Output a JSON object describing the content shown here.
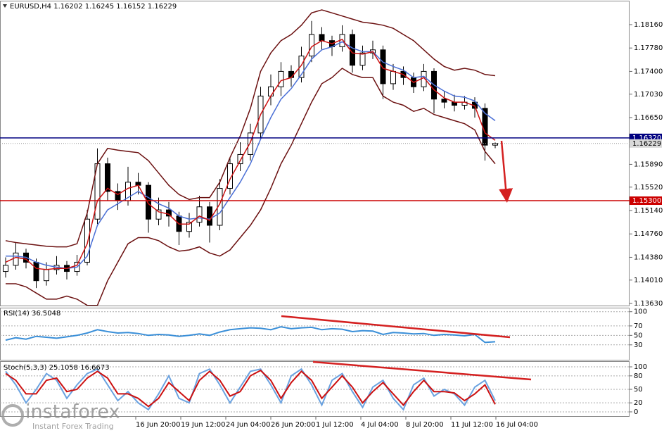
{
  "chart_data": [
    {
      "type": "candlestick",
      "symbol": "EURUSD,H4",
      "candles": [
        [
          1.1415,
          1.1438,
          1.1405,
          1.1425
        ],
        [
          1.1425,
          1.1462,
          1.1418,
          1.1445
        ],
        [
          1.1445,
          1.1452,
          1.142,
          1.143
        ],
        [
          1.143,
          1.1436,
          1.1388,
          1.14
        ],
        [
          1.14,
          1.143,
          1.1392,
          1.1418
        ],
        [
          1.1418,
          1.144,
          1.141,
          1.1425
        ],
        [
          1.1425,
          1.1432,
          1.1402,
          1.1415
        ],
        [
          1.1415,
          1.1442,
          1.1408,
          1.143
        ],
        [
          1.143,
          1.1515,
          1.1425,
          1.15
        ],
        [
          1.15,
          1.1615,
          1.1492,
          1.159
        ],
        [
          1.159,
          1.16,
          1.153,
          1.1545
        ],
        [
          1.1545,
          1.1558,
          1.1515,
          1.153
        ],
        [
          1.153,
          1.1585,
          1.1522,
          1.156
        ],
        [
          1.156,
          1.1575,
          1.154,
          1.1555
        ],
        [
          1.1555,
          1.156,
          1.1478,
          1.15
        ],
        [
          1.15,
          1.1535,
          1.149,
          1.1515
        ],
        [
          1.1515,
          1.1528,
          1.1488,
          1.1505
        ],
        [
          1.1505,
          1.1512,
          1.1458,
          1.148
        ],
        [
          1.148,
          1.151,
          1.147,
          1.1495
        ],
        [
          1.1495,
          1.1538,
          1.1488,
          1.152
        ],
        [
          1.152,
          1.1528,
          1.1462,
          1.149
        ],
        [
          1.149,
          1.1565,
          1.1482,
          1.155
        ],
        [
          1.155,
          1.16,
          1.154,
          1.159
        ],
        [
          1.159,
          1.1625,
          1.1578,
          1.1605
        ],
        [
          1.1605,
          1.1655,
          1.1595,
          1.164
        ],
        [
          1.164,
          1.1715,
          1.1632,
          1.17
        ],
        [
          1.17,
          1.1735,
          1.1685,
          1.1715
        ],
        [
          1.1715,
          1.1755,
          1.17,
          1.174
        ],
        [
          1.174,
          1.175,
          1.1715,
          1.173
        ],
        [
          1.173,
          1.178,
          1.1722,
          1.1765
        ],
        [
          1.1765,
          1.1822,
          1.1755,
          1.18
        ],
        [
          1.18,
          1.1812,
          1.1775,
          1.179
        ],
        [
          1.179,
          1.1798,
          1.1765,
          1.178
        ],
        [
          1.178,
          1.1815,
          1.1772,
          1.18
        ],
        [
          1.18,
          1.1808,
          1.1738,
          1.175
        ],
        [
          1.175,
          1.1782,
          1.1742,
          1.177
        ],
        [
          1.177,
          1.179,
          1.176,
          1.1775
        ],
        [
          1.1775,
          1.1782,
          1.1695,
          1.172
        ],
        [
          1.172,
          1.1752,
          1.171,
          1.174
        ],
        [
          1.174,
          1.1748,
          1.1718,
          1.173
        ],
        [
          1.173,
          1.1738,
          1.1705,
          1.1715
        ],
        [
          1.1715,
          1.1752,
          1.1708,
          1.174
        ],
        [
          1.174,
          1.1745,
          1.1672,
          1.1695
        ],
        [
          1.1695,
          1.1708,
          1.168,
          1.169
        ],
        [
          1.169,
          1.1702,
          1.1675,
          1.1685
        ],
        [
          1.1685,
          1.17,
          1.1678,
          1.169
        ],
        [
          1.169,
          1.1698,
          1.1665,
          1.168
        ],
        [
          1.168,
          1.1688,
          1.1595,
          1.16202
        ],
        [
          1.16202,
          1.16245,
          1.16152,
          1.16229
        ]
      ],
      "series": [
        {
          "color": "#6b1010",
          "values": [
            1.1465,
            1.1462,
            1.146,
            1.1458,
            1.1456,
            1.1455,
            1.1455,
            1.146,
            1.151,
            1.159,
            1.1615,
            1.1612,
            1.161,
            1.1608,
            1.1595,
            1.1575,
            1.1555,
            1.154,
            1.1532,
            1.1535,
            1.1535,
            1.156,
            1.16,
            1.1635,
            1.168,
            1.174,
            1.177,
            1.179,
            1.18,
            1.1815,
            1.1835,
            1.184,
            1.1835,
            1.183,
            1.1825,
            1.182,
            1.1818,
            1.1815,
            1.181,
            1.18,
            1.179,
            1.1775,
            1.176,
            1.1748,
            1.1742,
            1.1745,
            1.1742,
            1.1735,
            1.1733
          ]
        },
        {
          "color": "#6b1010",
          "values": [
            1.1395,
            1.1395,
            1.139,
            1.138,
            1.137,
            1.137,
            1.1375,
            1.137,
            1.136,
            1.136,
            1.14,
            1.143,
            1.146,
            1.147,
            1.147,
            1.1465,
            1.1455,
            1.1448,
            1.145,
            1.1455,
            1.1445,
            1.144,
            1.145,
            1.147,
            1.149,
            1.1515,
            1.155,
            1.159,
            1.162,
            1.1655,
            1.169,
            1.172,
            1.173,
            1.1745,
            1.1735,
            1.173,
            1.173,
            1.17,
            1.169,
            1.1685,
            1.1675,
            1.168,
            1.167,
            1.1665,
            1.166,
            1.1655,
            1.1645,
            1.161,
            1.159
          ]
        },
        {
          "color": "#4a6fd6",
          "values": [
            1.144,
            1.144,
            1.1438,
            1.143,
            1.1425,
            1.1422,
            1.142,
            1.1422,
            1.144,
            1.149,
            1.1515,
            1.1525,
            1.1535,
            1.1545,
            1.1535,
            1.1525,
            1.1518,
            1.1505,
            1.15,
            1.1502,
            1.15,
            1.151,
            1.1535,
            1.156,
            1.159,
            1.163,
            1.1665,
            1.1695,
            1.1712,
            1.1735,
            1.176,
            1.1775,
            1.178,
            1.1788,
            1.1778,
            1.1772,
            1.1772,
            1.1755,
            1.1748,
            1.1742,
            1.173,
            1.1732,
            1.1718,
            1.1708,
            1.17,
            1.1698,
            1.1692,
            1.1672,
            1.166
          ]
        },
        {
          "color": "#cc1111",
          "values": [
            1.143,
            1.1438,
            1.1435,
            1.142,
            1.1418,
            1.142,
            1.142,
            1.1425,
            1.146,
            1.153,
            1.155,
            1.154,
            1.155,
            1.1555,
            1.1525,
            1.1512,
            1.1508,
            1.1492,
            1.1492,
            1.1505,
            1.1498,
            1.1525,
            1.1565,
            1.1595,
            1.1625,
            1.167,
            1.17,
            1.1725,
            1.173,
            1.175,
            1.178,
            1.179,
            1.1785,
            1.1792,
            1.177,
            1.1768,
            1.1772,
            1.1745,
            1.174,
            1.1735,
            1.1722,
            1.173,
            1.171,
            1.1697,
            1.169,
            1.169,
            1.1684,
            1.164,
            1.1628
          ]
        }
      ],
      "levels": [
        {
          "value": 1.1632,
          "label": "1.16320",
          "color": "#000080"
        },
        {
          "value": 1.153,
          "label": "1.15300",
          "color": "#cc0000"
        }
      ],
      "ylim": [
        1.13596,
        1.18537
      ],
      "yticks": [
        {
          "value": 1.1816,
          "label": "1.18160"
        },
        {
          "value": 1.1778,
          "label": "1.17780"
        },
        {
          "value": 1.174,
          "label": "1.17400"
        },
        {
          "value": 1.1703,
          "label": "1.17030"
        },
        {
          "value": 1.1665,
          "label": "1.16650"
        },
        {
          "value": 1.1589,
          "label": "1.15890"
        },
        {
          "value": 1.1552,
          "label": "1.15520"
        },
        {
          "value": 1.1514,
          "label": "1.15140"
        },
        {
          "value": 1.1476,
          "label": "1.14760"
        },
        {
          "value": 1.1438,
          "label": "1.14380"
        },
        {
          "value": 1.1401,
          "label": "1.14010"
        },
        {
          "value": 1.1363,
          "label": "1.13630"
        }
      ],
      "grid": false
    },
    {
      "type": "line",
      "title": "RSI(14)",
      "series": [
        {
          "color": "#3a8fd8",
          "values": [
            40,
            45,
            42,
            48,
            46,
            44,
            47,
            50,
            55,
            62,
            58,
            55,
            56,
            54,
            50,
            52,
            51,
            48,
            50,
            53,
            50,
            57,
            62,
            64,
            66,
            65,
            62,
            68,
            64,
            66,
            67,
            62,
            64,
            63,
            58,
            60,
            59,
            52,
            56,
            55,
            53,
            54,
            50,
            52,
            51,
            49,
            52,
            35,
            36.5048
          ]
        }
      ],
      "ylim": [
        -3,
        107
      ],
      "yticks": [
        100,
        70,
        50,
        30
      ],
      "grid": true
    },
    {
      "type": "line",
      "title": "Stoch(5,3,3)",
      "series": [
        {
          "color": "#6aa2e0",
          "values": [
            90,
            60,
            20,
            50,
            85,
            70,
            30,
            60,
            85,
            95,
            60,
            25,
            45,
            20,
            5,
            40,
            80,
            30,
            20,
            85,
            95,
            60,
            20,
            55,
            90,
            95,
            60,
            20,
            80,
            95,
            60,
            15,
            70,
            85,
            45,
            10,
            55,
            70,
            30,
            5,
            60,
            75,
            35,
            50,
            40,
            15,
            55,
            70,
            25.1058
          ]
        },
        {
          "color": "#cc1111",
          "values": [
            85,
            70,
            40,
            40,
            70,
            75,
            45,
            50,
            75,
            90,
            75,
            40,
            40,
            30,
            12,
            30,
            65,
            45,
            25,
            70,
            90,
            70,
            35,
            45,
            80,
            92,
            70,
            30,
            65,
            90,
            70,
            30,
            55,
            80,
            55,
            20,
            45,
            65,
            40,
            15,
            45,
            70,
            45,
            45,
            42,
            25,
            40,
            60,
            16.6673
          ]
        }
      ],
      "ylim": [
        -11,
        111
      ],
      "yticks": [
        100,
        80,
        50,
        20,
        0
      ],
      "grid": true,
      "x_labels": [
        "16 Jun 20:00",
        "19 Jun 12:00",
        "24 Jun 04:00",
        "26 Jun 20:00",
        "1 Jul 12:00",
        "4 Jul 04:00",
        "8 Jul 20:00",
        "11 Jul 12:00",
        "16 Jul 04:00"
      ],
      "watermark": {
        "brand": "instaforex",
        "tagline": "Instant Forex Trading"
      }
    }
  ]
}
